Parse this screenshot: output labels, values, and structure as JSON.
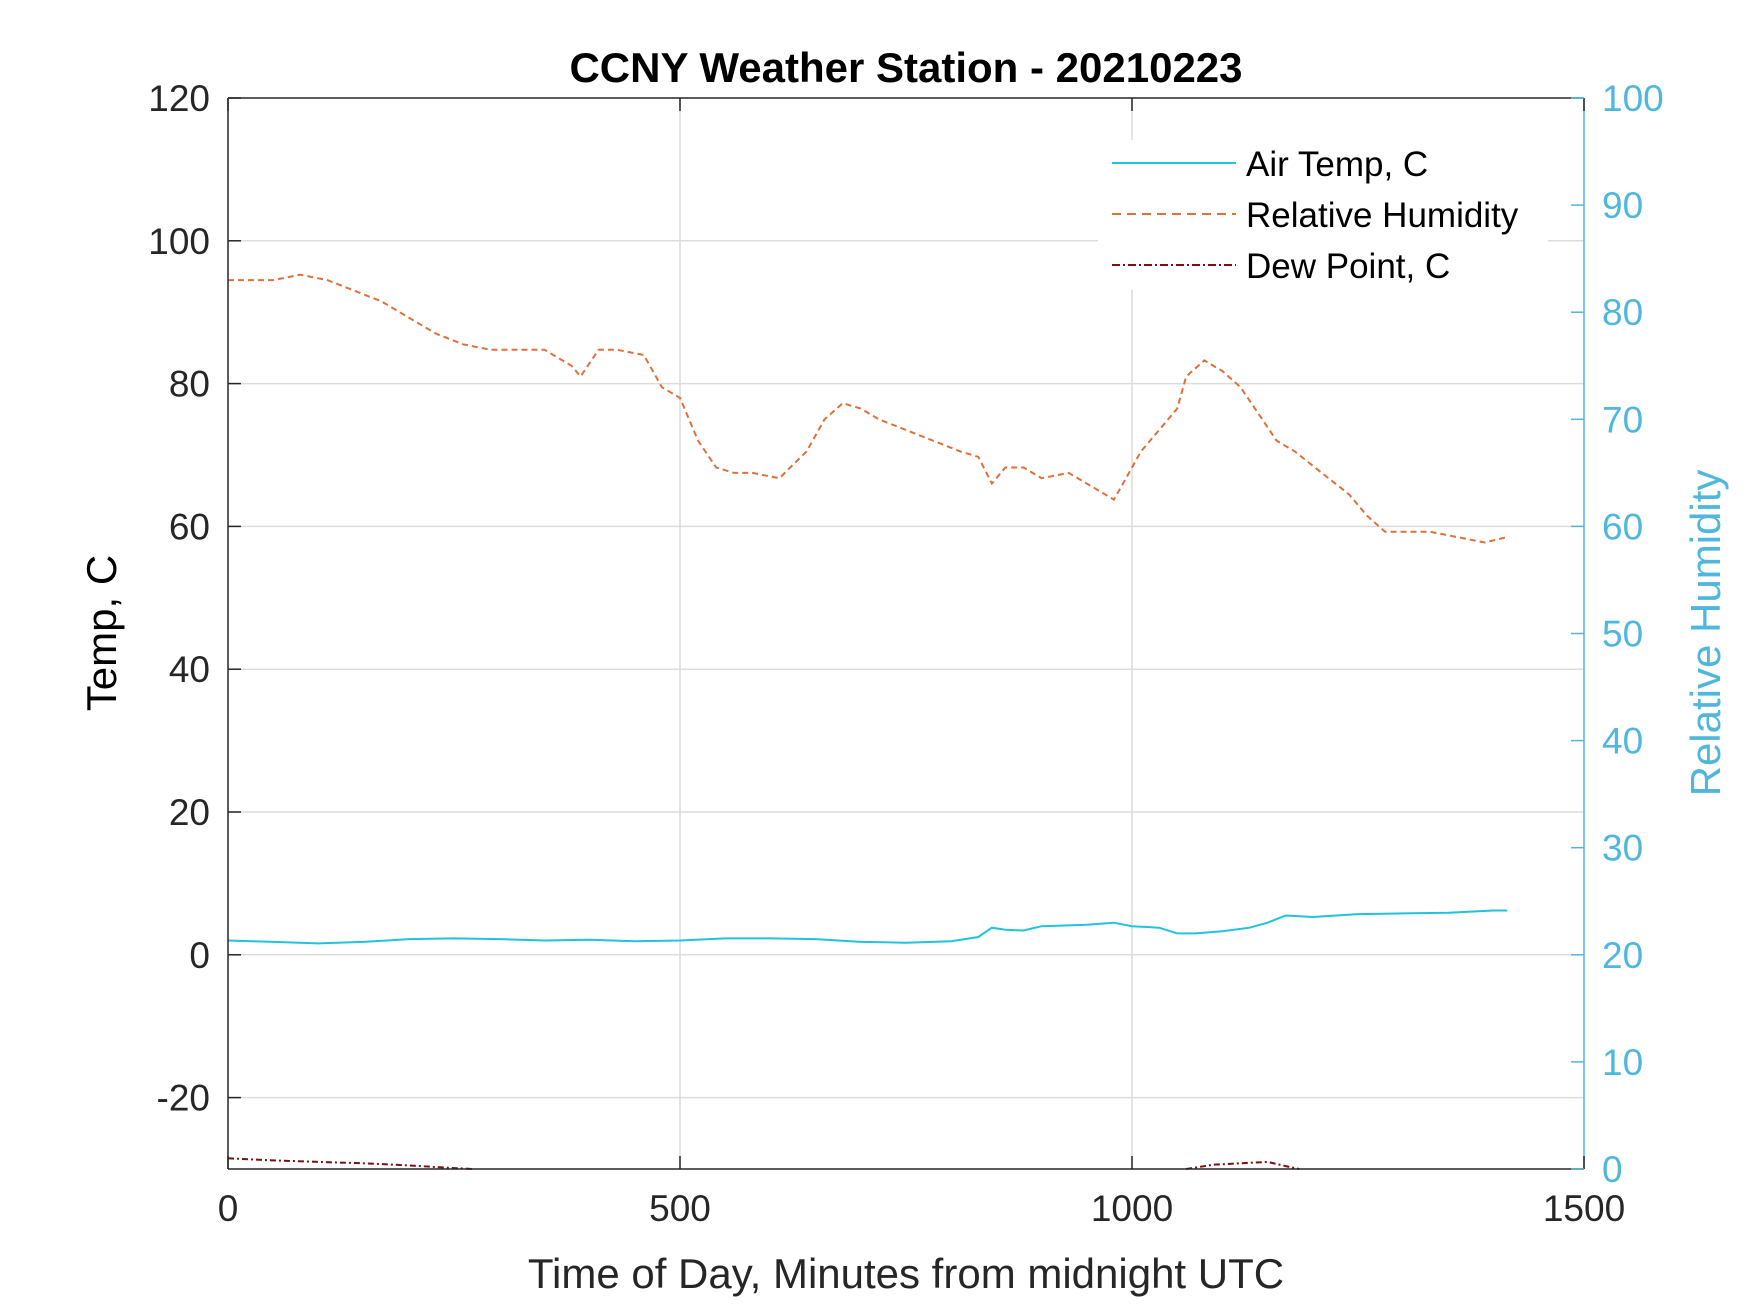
{
  "chart_data": {
    "type": "line",
    "title": "CCNY Weather Station - 20210223",
    "xlabel": "Time of Day, Minutes from midnight UTC",
    "ylabel_left": "Temp, C",
    "ylabel_right": "Relative Humidity",
    "xlim": [
      0,
      1500
    ],
    "ylim_left": [
      -30,
      120
    ],
    "ylim_right": [
      0,
      100
    ],
    "x_ticks": [
      0,
      500,
      1000,
      1500
    ],
    "y_ticks_left": [
      -20,
      0,
      20,
      40,
      60,
      80,
      100,
      120
    ],
    "y_ticks_right": [
      0,
      10,
      20,
      30,
      40,
      50,
      60,
      70,
      80,
      90,
      100
    ],
    "grid": true,
    "legend_position": "top-right",
    "colors": {
      "air_temp": "#1fc3dc",
      "humidity": "#e0703a",
      "dew_point": "#7a1010",
      "right_axis": "#4fb7dd"
    },
    "series": [
      {
        "name": "Air Temp, C",
        "axis": "left",
        "style": "solid",
        "x": [
          0,
          50,
          100,
          150,
          200,
          250,
          300,
          350,
          400,
          450,
          500,
          550,
          600,
          650,
          700,
          750,
          800,
          830,
          845,
          860,
          880,
          900,
          950,
          980,
          1000,
          1030,
          1050,
          1070,
          1100,
          1130,
          1150,
          1170,
          1200,
          1250,
          1300,
          1350,
          1400,
          1415
        ],
        "values": [
          2.0,
          1.8,
          1.6,
          1.8,
          2.2,
          2.3,
          2.2,
          2.0,
          2.1,
          1.9,
          2.0,
          2.3,
          2.3,
          2.2,
          1.8,
          1.7,
          1.9,
          2.5,
          3.8,
          3.5,
          3.4,
          4.0,
          4.2,
          4.5,
          4.0,
          3.8,
          3.0,
          3.0,
          3.3,
          3.8,
          4.5,
          5.5,
          5.3,
          5.7,
          5.8,
          5.9,
          6.2,
          6.2
        ]
      },
      {
        "name": "Relative Humidity",
        "axis": "right",
        "style": "dashed",
        "x": [
          0,
          20,
          50,
          80,
          110,
          140,
          170,
          200,
          230,
          260,
          290,
          320,
          350,
          380,
          390,
          410,
          430,
          460,
          480,
          500,
          520,
          540,
          560,
          580,
          610,
          640,
          660,
          680,
          700,
          720,
          750,
          780,
          810,
          830,
          845,
          860,
          880,
          900,
          930,
          960,
          980,
          990,
          1010,
          1030,
          1050,
          1060,
          1080,
          1100,
          1120,
          1140,
          1160,
          1180,
          1210,
          1240,
          1260,
          1280,
          1300,
          1330,
          1360,
          1390,
          1415
        ],
        "values": [
          83,
          83,
          83,
          83.5,
          83,
          82,
          81,
          79.5,
          78,
          77,
          76.5,
          76.5,
          76.5,
          75,
          74,
          76.5,
          76.5,
          76,
          73,
          72,
          68,
          65.5,
          65,
          65,
          64.5,
          67,
          70,
          71.5,
          71,
          70,
          69,
          68,
          67,
          66.5,
          64,
          65.5,
          65.5,
          64.5,
          65,
          63.5,
          62.5,
          64,
          67,
          69,
          71,
          74,
          75.5,
          74.5,
          73,
          70.5,
          68,
          67,
          65,
          63,
          61,
          59.5,
          59.5,
          59.5,
          59,
          58.5,
          59
        ]
      },
      {
        "name": "Dew Point, C",
        "axis": "left",
        "style": "dash-dot",
        "segments": [
          {
            "x": [
              0,
              50,
              100,
              150,
              200,
              240,
              270
            ],
            "values": [
              -28.5,
              -28.8,
              -29.0,
              -29.2,
              -29.5,
              -29.8,
              -30.0
            ]
          },
          {
            "x": [
              1060,
              1090,
              1120,
              1150,
              1170,
              1185
            ],
            "values": [
              -30.0,
              -29.4,
              -29.2,
              -29.0,
              -29.6,
              -30.0
            ]
          }
        ]
      }
    ]
  }
}
